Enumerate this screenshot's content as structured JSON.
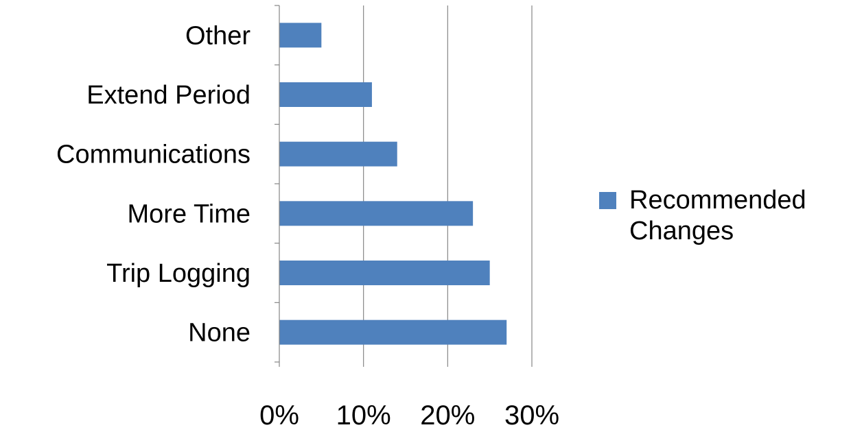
{
  "chart_data": {
    "type": "bar",
    "orientation": "horizontal",
    "categories": [
      "None",
      "Trip Logging",
      "More Time ",
      "Communications",
      "Extend Period",
      "Other"
    ],
    "series": [
      {
        "name": "Recommended Changes",
        "values": [
          27,
          25,
          23,
          14,
          11,
          5
        ],
        "color": "#4f81bd"
      }
    ],
    "value_unit": "%",
    "xlim": [
      0,
      30
    ],
    "x_ticks": [
      0,
      10,
      20,
      30
    ],
    "x_tick_labels": [
      "0%",
      "10%",
      "20%",
      "30%"
    ],
    "grid": "vertical major gridlines",
    "legend_position": "right",
    "legend_lines": [
      "Recommended",
      "Changes"
    ],
    "gridline_color": "#868686",
    "axis_color": "#868686"
  }
}
